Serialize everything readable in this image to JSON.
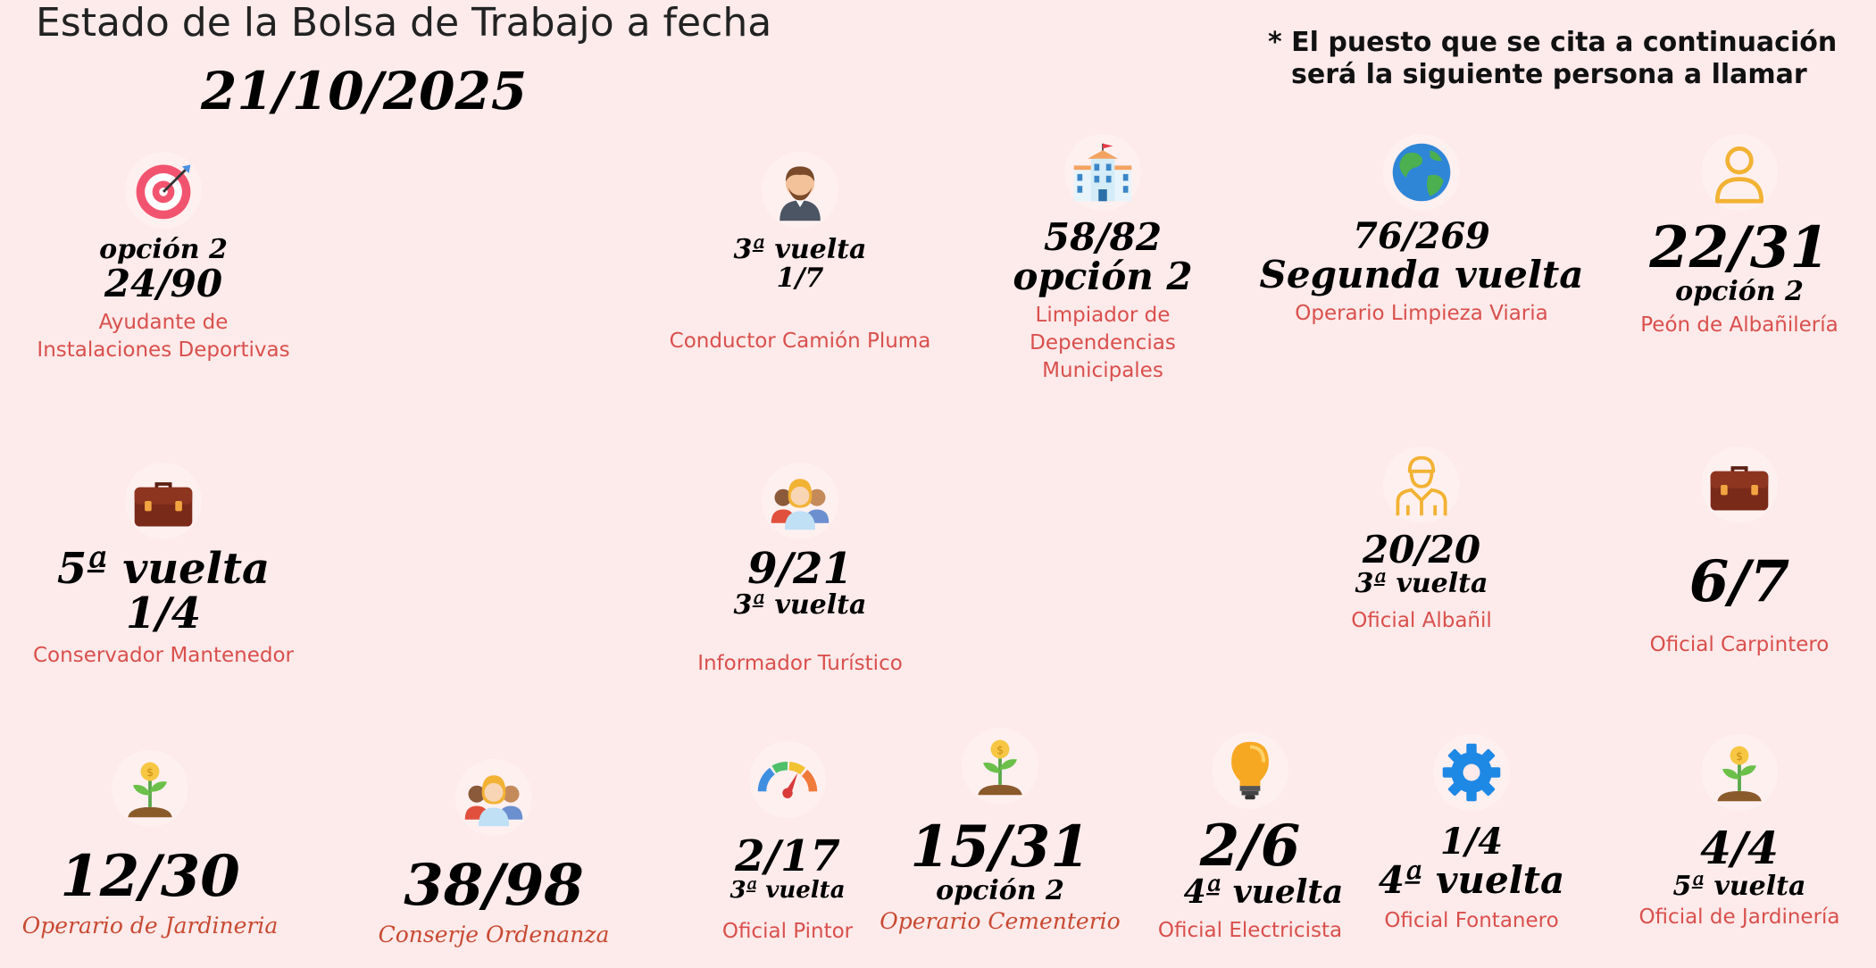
{
  "header": {
    "title": "Estado de la Bolsa de Trabajo a fecha",
    "date": "21/10/2025",
    "note_line1": "* El puesto que se cita a continuación",
    "note_line2": "será la siguiente persona a llamar"
  },
  "colors": {
    "background": "#fdeaea",
    "label": "#d9504d",
    "label_italic": "#c84a32"
  },
  "jobs": [
    {
      "icon": "target-icon",
      "lines": [
        "opción 2",
        "24/90"
      ],
      "label": "Ayudante de Instalaciones Deportivas"
    },
    {
      "icon": "man-avatar-icon",
      "lines": [
        "3ª vuelta",
        "1/7"
      ],
      "label": "Conductor Camión Pluma"
    },
    {
      "icon": "school-building-icon",
      "lines": [
        "58/82",
        "opción 2"
      ],
      "label": "Limpiador de Dependencias Municipales"
    },
    {
      "icon": "globe-icon",
      "lines": [
        "76/269",
        "Segunda vuelta"
      ],
      "label": "Operario Limpieza Viaria"
    },
    {
      "icon": "user-outline-icon",
      "lines": [
        "22/31",
        "opción 2"
      ],
      "label": "Peón de Albañilería"
    },
    {
      "icon": "briefcase-icon",
      "lines": [
        "5ª vuelta",
        "1/4"
      ],
      "label": "Conservador Mantenedor"
    },
    {
      "icon": "group-people-icon",
      "lines": [
        "9/21",
        "3ª vuelta"
      ],
      "label": "Informador Turístico"
    },
    {
      "icon": "worker-outline-icon",
      "lines": [
        "20/20",
        "3ª vuelta"
      ],
      "label": "Oficial Albañil"
    },
    {
      "icon": "briefcase-icon",
      "lines": [
        "6/7"
      ],
      "label": "Oficial Carpintero"
    },
    {
      "icon": "sprout-icon",
      "lines": [
        "12/30"
      ],
      "label": "Operario de Jardineria"
    },
    {
      "icon": "group-people-icon",
      "lines": [
        "38/98"
      ],
      "label": "Conserje Ordenanza"
    },
    {
      "icon": "gauge-icon",
      "lines": [
        "2/17",
        "3ª vuelta"
      ],
      "label": "Oficial Pintor"
    },
    {
      "icon": "sprout-icon",
      "lines": [
        "15/31",
        "opción 2"
      ],
      "label": "Operario Cementerio"
    },
    {
      "icon": "lightbulb-icon",
      "lines": [
        "2/6",
        "4ª vuelta"
      ],
      "label": "Oficial Electricista"
    },
    {
      "icon": "gear-icon",
      "lines": [
        "1/4",
        "4ª vuelta"
      ],
      "label": "Oficial Fontanero"
    },
    {
      "icon": "sprout-icon",
      "lines": [
        "4/4",
        "5ª vuelta"
      ],
      "label": "Oficial de Jardinería"
    }
  ]
}
